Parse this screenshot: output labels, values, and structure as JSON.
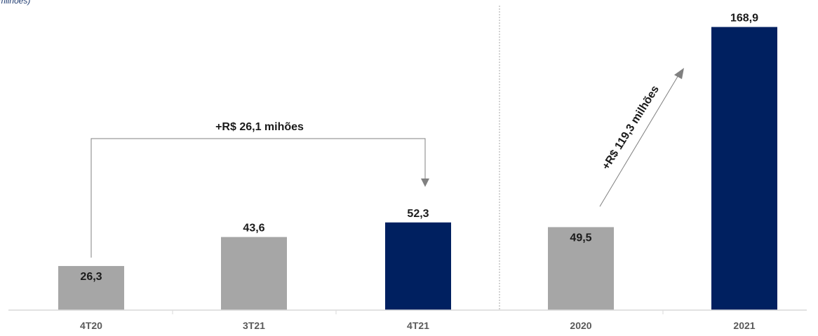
{
  "chart_data": {
    "type": "bar",
    "unit_label": "milhões)",
    "categories": [
      "4T20",
      "3T21",
      "4T21",
      "2020",
      "2021"
    ],
    "values": [
      26.3,
      43.6,
      52.3,
      49.5,
      168.9
    ],
    "value_labels": [
      "26,3",
      "43,6",
      "52,3",
      "49,5",
      "168,9"
    ],
    "colors": [
      "#a6a6a6",
      "#a6a6a6",
      "#002060",
      "#a6a6a6",
      "#002060"
    ],
    "ylim": [
      0,
      185
    ],
    "grid": false,
    "legend": "none",
    "annotations": [
      {
        "text": "+R$ 26,1 mihões",
        "from": "4T20",
        "to": "4T21"
      },
      {
        "text": "+R$ 119,3 milhões",
        "from": "2020",
        "to": "2021"
      }
    ]
  }
}
